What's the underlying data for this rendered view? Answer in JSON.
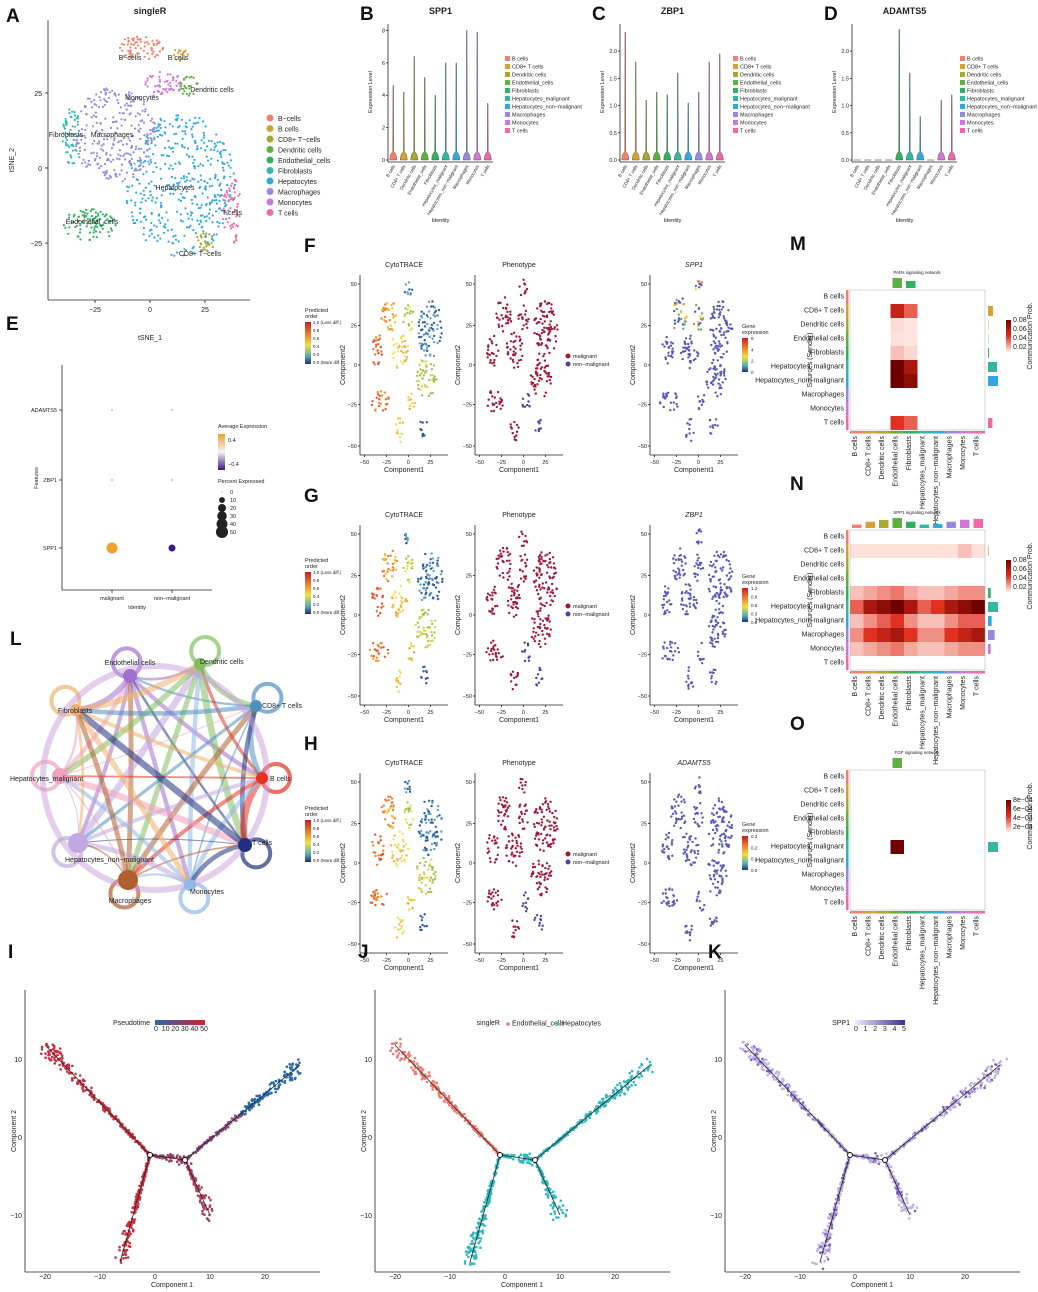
{
  "figure": {
    "A": {
      "letter": "A",
      "title": "singleR",
      "x_label": "tSNE_1",
      "y_label": "tSNE_2",
      "x_ticks": [
        "−25",
        "0",
        "25"
      ],
      "y_ticks": [
        "25",
        "0",
        "−25"
      ],
      "clusters": [
        {
          "name": "B−cells",
          "color": "#f08070"
        },
        {
          "name": "B cells",
          "color": "#d8a030"
        },
        {
          "name": "CD8+ T−cells",
          "color": "#a8a830"
        },
        {
          "name": "Dendritic cells",
          "color": "#60b040"
        },
        {
          "name": "Endothelial_cells",
          "color": "#30b060"
        },
        {
          "name": "Fibroblasts",
          "color": "#30b8b0"
        },
        {
          "name": "Hepatocytes",
          "color": "#30a8e0"
        },
        {
          "name": "Macrophages",
          "color": "#9888e0"
        },
        {
          "name": "Monocytes",
          "color": "#d078d8"
        },
        {
          "name": "T cells",
          "color": "#f068a8"
        }
      ]
    },
    "violin": {
      "y_label": "Expression Level",
      "x_label": "Identity",
      "identities": [
        "B cells",
        "CD8+ T cells",
        "Dendritic cells",
        "Endothelial_cells",
        "Fibroblasts",
        "Hepatocytes_malignant",
        "Hepatocytes_non−malignant",
        "Macrophages",
        "Monocytes",
        "T cells"
      ],
      "colors": [
        "#f08070",
        "#d8a030",
        "#a8a830",
        "#60b040",
        "#30b060",
        "#30b8a0",
        "#30a8e0",
        "#9888e0",
        "#d078d8",
        "#f068a8"
      ]
    },
    "B": {
      "letter": "B",
      "title": "SPP1",
      "ylim": [
        0,
        8.4
      ],
      "y_ticks": [
        0,
        2,
        4,
        6,
        8
      ],
      "peaks": [
        4.6,
        4.2,
        6.4,
        5.1,
        4.0,
        6.0,
        6.0,
        8.0,
        7.9,
        3.5
      ]
    },
    "C": {
      "letter": "C",
      "title": "ZBP1",
      "ylim": [
        0,
        2.5
      ],
      "y_ticks": [
        {
          "value": 0,
          "label": "0.0"
        },
        {
          "value": 0.5,
          "label": "0.5"
        },
        {
          "value": 1,
          "label": "1.0"
        },
        {
          "value": 1.5,
          "label": "1.5"
        },
        {
          "value": 2,
          "label": "2.0"
        }
      ],
      "peaks": [
        2.35,
        1.8,
        1.1,
        1.25,
        1.2,
        1.6,
        1.05,
        1.25,
        1.8,
        1.95
      ]
    },
    "D": {
      "letter": "D",
      "title": "ADAMTS5",
      "ylim": [
        0,
        2.5
      ],
      "y_ticks": [
        {
          "value": 0,
          "label": "0.0"
        },
        {
          "value": 0.5,
          "label": "0.5"
        },
        {
          "value": 1,
          "label": "1.0"
        },
        {
          "value": 1.5,
          "label": "1.5"
        },
        {
          "value": 2,
          "label": "2.0"
        }
      ],
      "peaks": [
        0,
        0,
        0,
        0,
        2.4,
        1.6,
        0.8,
        0,
        1.1,
        1.2
      ]
    },
    "E": {
      "letter": "E",
      "features": [
        "ADAMTS5",
        "ZBP1",
        "SPP1"
      ],
      "identities": [
        "malignant",
        "non−malignant"
      ],
      "x_label": "Identity",
      "y_label": "Features",
      "color_title": "Average Expression",
      "color_ticks": [
        "0.4",
        "−0.4"
      ],
      "size_title": "Percent Expressed",
      "size_ticks": [
        0,
        10,
        20,
        30,
        40,
        50
      ],
      "percent_expressed": [
        [
          0.5,
          0.5
        ],
        [
          0.5,
          0.5
        ],
        [
          40,
          15
        ]
      ],
      "average_expression": [
        [
          0,
          0
        ],
        [
          0,
          0
        ],
        [
          0.45,
          -0.45
        ]
      ]
    },
    "rows": {
      "x_label": "Component1",
      "y_label": "Component2",
      "x_ticks": [
        "−50",
        "−25",
        "0",
        "25"
      ],
      "y_ticks": [
        "50",
        "25",
        "0",
        "−25",
        "−50"
      ],
      "cyto_title": [
        "Predicted",
        "order"
      ],
      "cyto_ticks": [
        "1.0 (Less diff.)",
        "0.8",
        "0.6",
        "0.4",
        "0.2",
        "0.0 (More diff.)"
      ],
      "phenotype_items": [
        "malignant",
        "non−malignant"
      ],
      "gene_title": [
        "Gene",
        "expression"
      ],
      "list": [
        {
          "letter": "F",
          "titles": [
            "CytoTRACE",
            "Phenotype",
            "SPP1"
          ],
          "gene_ticks": [
            "6",
            "4",
            "2",
            "0"
          ]
        },
        {
          "letter": "G",
          "titles": [
            "CytoTRACE",
            "Phenotype",
            "ZBP1"
          ],
          "gene_ticks": [
            "1.2",
            "0.9",
            "0.6",
            "0.3",
            "0.0"
          ]
        },
        {
          "letter": "H",
          "titles": [
            "CytoTRACE",
            "Phenotype",
            "ADAMTS5"
          ],
          "gene_ticks": [
            "0.3",
            "0.2",
            "0.1",
            "0.0"
          ]
        }
      ]
    },
    "heat": {
      "cell_types": [
        "B cells",
        "CD8+ T cells",
        "Dendritic cells",
        "Endothelial cells",
        "Fibroblasts",
        "Hepatocytes_malignant",
        "Hepatocytes_non−malignant",
        "Macrophages",
        "Monocytes",
        "T cells"
      ],
      "y_label": "Sources (Sender)",
      "legend_title": "Communication Prob.",
      "list": [
        {
          "letter": "M",
          "title": "PARs signaling network",
          "legend_ticks": [
            {
              "value": 0.08,
              "label": "0.08"
            },
            {
              "value": 0.06,
              "label": "0.06"
            },
            {
              "value": 0.04,
              "label": "0.04"
            },
            {
              "value": 0.02,
              "label": "0.02"
            }
          ],
          "matrix": [
            [
              0,
              0,
              0,
              0,
              0,
              0,
              0,
              0,
              0,
              0
            ],
            [
              0,
              0,
              0,
              0.05,
              0.03,
              0,
              0,
              0,
              0,
              0
            ],
            [
              0,
              0,
              0,
              0.004,
              0.002,
              0,
              0,
              0,
              0,
              0
            ],
            [
              0,
              0,
              0,
              0.003,
              0.002,
              0,
              0,
              0,
              0,
              0
            ],
            [
              0,
              0,
              0,
              0.01,
              0.005,
              0,
              0,
              0,
              0,
              0
            ],
            [
              0,
              0,
              0,
              0.085,
              0.06,
              0,
              0,
              0,
              0,
              0
            ],
            [
              0,
              0,
              0,
              0.09,
              0.07,
              0,
              0,
              0,
              0,
              0
            ],
            [
              0,
              0,
              0,
              0,
              0,
              0,
              0,
              0,
              0,
              0
            ],
            [
              0,
              0,
              0,
              0,
              0,
              0,
              0,
              0,
              0,
              0
            ],
            [
              0,
              0,
              0,
              0.04,
              0.03,
              0,
              0,
              0,
              0,
              0
            ]
          ]
        },
        {
          "letter": "N",
          "title": "SPP1 signaling network",
          "legend_ticks": [
            {
              "value": 0.08,
              "label": "0.08"
            },
            {
              "value": 0.06,
              "label": "0.06"
            },
            {
              "value": 0.04,
              "label": "0.04"
            },
            {
              "value": 0.02,
              "label": "0.02"
            }
          ],
          "matrix": [
            [
              0,
              0,
              0,
              0,
              0,
              0,
              0,
              0,
              0,
              0
            ],
            [
              0.003,
              0.003,
              0.003,
              0.003,
              0.003,
              0.003,
              0.003,
              0.003,
              0.01,
              0.003
            ],
            [
              0,
              0,
              0,
              0,
              0,
              0,
              0,
              0,
              0,
              0
            ],
            [
              0,
              0,
              0,
              0,
              0,
              0,
              0,
              0,
              0,
              0
            ],
            [
              0.01,
              0.015,
              0.02,
              0.025,
              0.015,
              0.01,
              0.01,
              0.015,
              0.02,
              0.02
            ],
            [
              0.03,
              0.06,
              0.07,
              0.09,
              0.06,
              0.03,
              0.04,
              0.06,
              0.07,
              0.09
            ],
            [
              0.01,
              0.02,
              0.03,
              0.04,
              0.02,
              0.01,
              0.01,
              0.02,
              0.03,
              0.03
            ],
            [
              0.02,
              0.04,
              0.05,
              0.06,
              0.04,
              0.02,
              0.02,
              0.04,
              0.05,
              0.06
            ],
            [
              0.01,
              0.015,
              0.02,
              0.025,
              0.015,
              0.01,
              0.01,
              0.015,
              0.02,
              0.02
            ],
            [
              0,
              0,
              0,
              0,
              0,
              0,
              0,
              0,
              0,
              0
            ]
          ]
        },
        {
          "letter": "O",
          "title": "FGF signaling network",
          "legend_ticks": [
            {
              "value": 0.0008,
              "label": "8e−04"
            },
            {
              "value": 0.0006,
              "label": "6e−04"
            },
            {
              "value": 0.0004,
              "label": "4e−04"
            },
            {
              "value": 0.0002,
              "label": "2e−04"
            }
          ],
          "matrix": [
            [
              0,
              0,
              0,
              0,
              0,
              0,
              0,
              0,
              0,
              0
            ],
            [
              0,
              0,
              0,
              0,
              0,
              0,
              0,
              0,
              0,
              0
            ],
            [
              0,
              0,
              0,
              0,
              0,
              0,
              0,
              0,
              0,
              0
            ],
            [
              0,
              0,
              0,
              0,
              0,
              0,
              0,
              0,
              0,
              0
            ],
            [
              0,
              0,
              0,
              0,
              0,
              0,
              0,
              0,
              0,
              0
            ],
            [
              0,
              0,
              0,
              0.0009,
              0,
              0,
              0,
              0,
              0,
              0
            ],
            [
              0,
              0,
              0,
              0,
              0,
              0,
              0,
              0,
              0,
              0
            ],
            [
              0,
              0,
              0,
              0,
              0,
              0,
              0,
              0,
              0,
              0
            ],
            [
              0,
              0,
              0,
              0,
              0,
              0,
              0,
              0,
              0,
              0
            ],
            [
              0,
              0,
              0,
              0,
              0,
              0,
              0,
              0,
              0,
              0
            ]
          ]
        }
      ]
    },
    "L": {
      "letter": "L",
      "nodes": [
        {
          "name": "Endothelial cells",
          "color": "#a070d0"
        },
        {
          "name": "Dendritic cells",
          "color": "#80c060"
        },
        {
          "name": "CD8+ T cells",
          "color": "#5090c0"
        },
        {
          "name": "B cells",
          "color": "#e83020"
        },
        {
          "name": "T cells",
          "color": "#203080"
        },
        {
          "name": "Monocytes",
          "color": "#90b8e8"
        },
        {
          "name": "Macrophages",
          "color": "#b06030"
        },
        {
          "name": "Hepatocytes_non−malignant",
          "color": "#c0a8e0"
        },
        {
          "name": "Hepatocytes_malignant",
          "color": "#f0a0c0"
        },
        {
          "name": "Fibroblasts",
          "color": "#f0b070"
        }
      ]
    },
    "traj": {
      "x_label": "Component 1",
      "y_label": "Component 2",
      "x_ticks": [
        "−20",
        "−10",
        "0",
        "10",
        "20"
      ],
      "y_ticks": [
        "10",
        "0",
        "−10"
      ],
      "list": [
        {
          "letter": "I",
          "legend_title": "Pseudotime",
          "legend_ticks": [
            "0",
            "10",
            "20",
            "30",
            "40",
            "50"
          ]
        },
        {
          "letter": "J",
          "legend_title": "singleR",
          "legend_ticks": [
            "Endothelial_cells",
            "Hepatocytes"
          ]
        },
        {
          "letter": "K",
          "legend_title": "SPP1",
          "legend_ticks": [
            "0",
            "1",
            "2",
            "3",
            "4",
            "5"
          ]
        }
      ]
    }
  }
}
